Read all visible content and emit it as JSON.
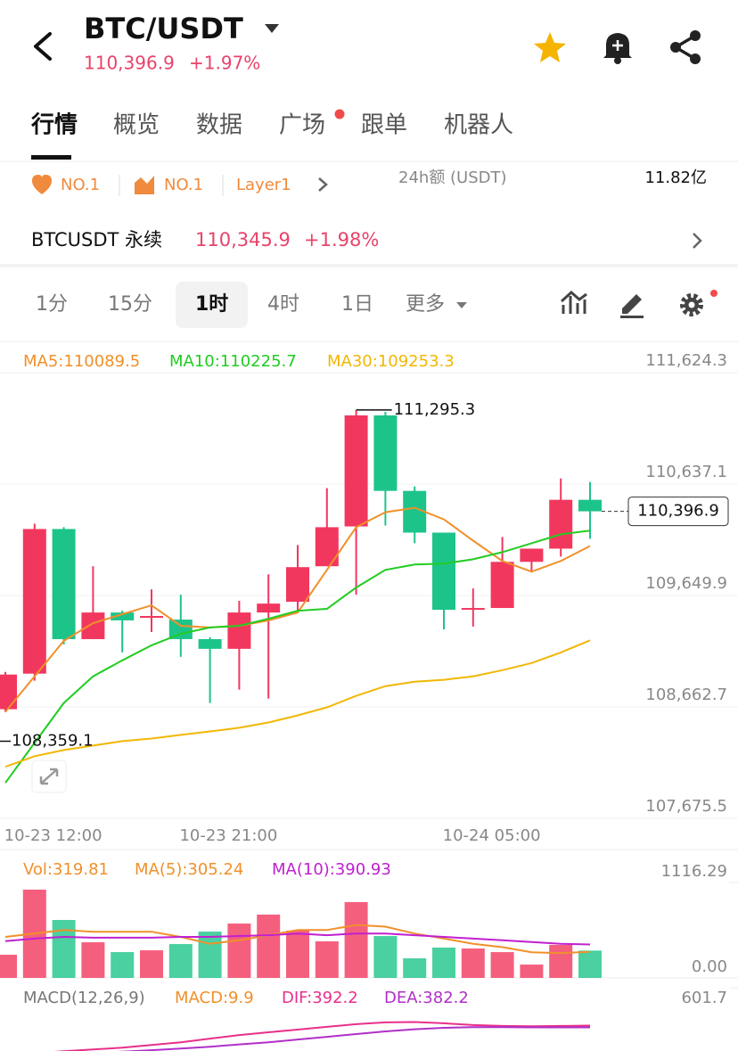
{
  "header": {
    "pair": "BTC/USDT",
    "price": "110,396.9",
    "change": "+1.97%"
  },
  "tabs": [
    "行情",
    "概览",
    "数据",
    "广场",
    "跟单",
    "机器人"
  ],
  "tags": [
    "NO.1",
    "NO.1",
    "Layer1"
  ],
  "turnover": {
    "label": "24h额 (USDT)",
    "value": "11.82亿"
  },
  "contract": {
    "name": "BTCUSDT 永续",
    "price": "110,345.9",
    "change": "+1.98%"
  },
  "intervals": [
    "1分",
    "15分",
    "1时",
    "4时",
    "1日",
    "更多"
  ],
  "chart_data": [
    {
      "type": "candlestick",
      "categories": [
        null,
        null,
        "10-23 12:00",
        null,
        null,
        null,
        null,
        null,
        "10-23 21:00",
        null,
        null,
        null,
        null,
        null,
        null,
        null,
        null,
        "10-24 05:00",
        null,
        null,
        null
      ],
      "open": [
        108643,
        108958,
        110240,
        109264,
        109500,
        109453,
        109437,
        109264,
        109178,
        109500,
        109595,
        109910,
        110263,
        111247,
        110578,
        110208,
        109532,
        109540,
        109949,
        110066,
        110499
      ],
      "high": [
        108973,
        110287,
        110256,
        109910,
        109516,
        109705,
        109658,
        109280,
        109603,
        109839,
        110098,
        110602,
        111295.3,
        111279,
        110617,
        110208,
        109713,
        110169,
        110066,
        110688,
        110657
      ],
      "low": [
        108619,
        108895,
        109217,
        109264,
        109146,
        109327,
        109107,
        108698,
        108816,
        108737,
        109500,
        109910,
        109658,
        110271,
        110114,
        109351,
        109375,
        109540,
        109862,
        109996,
        110153
      ],
      "close": [
        108950,
        110240,
        109264,
        109500,
        109430,
        109469,
        109264,
        109178,
        109500,
        109579,
        109902,
        110256,
        111247,
        110578,
        110208,
        109524,
        109540,
        109949,
        110066,
        110499,
        110396.9
      ],
      "up_color": "#f2375e",
      "down_color": "#1dc48a",
      "series": [
        {
          "name": "MA5:110089.5",
          "color": "#f0902a",
          "values": [
            108619,
            108934,
            109249,
            109406,
            109485,
            109563,
            109382,
            109367,
            109382,
            109430,
            109500,
            109878,
            110256,
            110389,
            110428,
            110326,
            110137,
            109957,
            109862,
            109957,
            110089.5
          ]
        },
        {
          "name": "MA10:110225.7",
          "color": "#22cc22",
          "values": [
            107990,
            108344,
            108698,
            108934,
            109076,
            109209,
            109311,
            109367,
            109382,
            109445,
            109516,
            109532,
            109721,
            109878,
            109925,
            109933,
            109972,
            110035,
            110114,
            110193,
            110225.7
          ]
        },
        {
          "name": "MA30:109253.3",
          "color": "#f2b705",
          "values": [
            108132,
            108226,
            108281,
            108320,
            108360,
            108383,
            108415,
            108446,
            108478,
            108525,
            108588,
            108659,
            108761,
            108847,
            108887,
            108903,
            108934,
            108989,
            109052,
            109146,
            109253.3
          ]
        }
      ],
      "ylim": [
        107675.5,
        111887
      ],
      "yticks": [
        {
          "value": 111624.3,
          "label": "111,624.3"
        },
        {
          "value": 110637.1,
          "label": "110,637.1"
        },
        {
          "value": 109649.9,
          "label": "109,649.9"
        },
        {
          "value": 108662.7,
          "label": "108,662.7"
        },
        {
          "value": 107675.5,
          "label": "107,675.5"
        }
      ],
      "grid": true,
      "annotations": [
        {
          "kind": "high",
          "value": 111295.3,
          "label": "111,295.3"
        },
        {
          "kind": "low",
          "value": 108359.1,
          "label": "108,359.1"
        },
        {
          "kind": "last",
          "value": 110396.9,
          "label": "110,396.9"
        }
      ]
    },
    {
      "type": "bar",
      "legend": [
        "Vol:319.81"
      ],
      "values": [
        271,
        1033,
        678,
        417,
        302,
        323,
        396,
        542,
        636,
        741,
        553,
        428,
        887,
        490,
        229,
        355,
        344,
        302,
        156,
        386,
        319.81
      ],
      "colors": [
        "#f2375e",
        "#f2375e",
        "#1dc48a",
        "#f2375e",
        "#1dc48a",
        "#f2375e",
        "#1dc48a",
        "#1dc48a",
        "#f2375e",
        "#f2375e",
        "#f2375e",
        "#f2375e",
        "#f2375e",
        "#1dc48a",
        "#1dc48a",
        "#1dc48a",
        "#f2375e",
        "#f2375e",
        "#f2375e",
        "#f2375e",
        "#1dc48a"
      ],
      "series": [
        {
          "name": "MA(5):305.24",
          "color": "#f0902a",
          "values": [
            480,
            520,
            560,
            540,
            540,
            540,
            480,
            400,
            440,
            500,
            560,
            560,
            620,
            600,
            520,
            460,
            400,
            360,
            300,
            290,
            305.24
          ]
        },
        {
          "name": "MA(10):390.93",
          "color": "#c020d0",
          "values": [
            430,
            460,
            480,
            470,
            470,
            470,
            480,
            480,
            490,
            500,
            520,
            500,
            520,
            520,
            500,
            480,
            460,
            440,
            420,
            400,
            390.93
          ]
        }
      ],
      "ylim": [
        0,
        1116.29
      ],
      "yticks": [
        {
          "value": 0,
          "label": "0.00"
        },
        {
          "value": 1116.29,
          "label": "1116.29"
        }
      ]
    },
    {
      "type": "line",
      "legend": [
        "MACD(12,26,9)",
        "MACD:9.9"
      ],
      "series": [
        {
          "name": "DIF:392.2",
          "color": "#e8308a",
          "values": [
            230,
            240,
            250,
            260,
            270,
            285,
            300,
            320,
            340,
            355,
            370,
            385,
            400,
            410,
            412,
            405,
            395,
            390,
            388,
            390,
            392.2
          ]
        },
        {
          "name": "DEA:382.2",
          "color": "#b030c8",
          "values": [
            220,
            225,
            232,
            240,
            248,
            256,
            265,
            275,
            288,
            300,
            315,
            330,
            345,
            360,
            372,
            380,
            383,
            383,
            382,
            382,
            382.2
          ]
        }
      ],
      "ylim": [
        0,
        601.7
      ],
      "yticks": [
        601.7
      ]
    }
  ]
}
